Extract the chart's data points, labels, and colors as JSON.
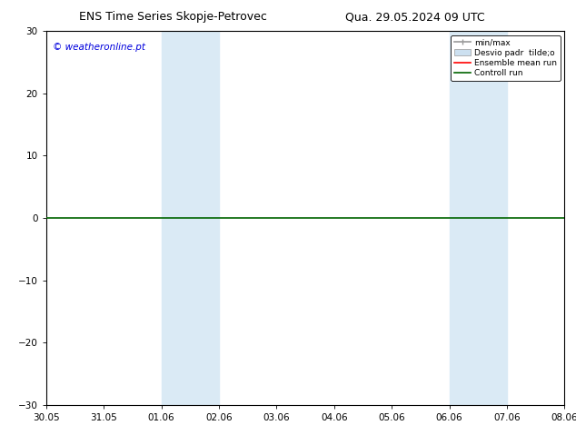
{
  "title_left": "ENS Time Series Skopje-Petrovec",
  "title_right": "Qua. 29.05.2024 09 UTC",
  "xlabel_ticks": [
    "30.05",
    "31.05",
    "01.06",
    "02.06",
    "03.06",
    "04.06",
    "05.06",
    "06.06",
    "07.06",
    "08.06"
  ],
  "ylim": [
    -30,
    30
  ],
  "yticks": [
    -30,
    -20,
    -10,
    0,
    10,
    20,
    30
  ],
  "watermark": "© weatheronline.pt",
  "watermark_color": "#0000dd",
  "legend_entries": [
    "min/max",
    "Desvio padr  tilde;o",
    "Ensemble mean run",
    "Controll run"
  ],
  "legend_colors": [
    "#aaaaaa",
    "#cce0f0",
    "#ff0000",
    "#006400"
  ],
  "shaded_regions": [
    {
      "xstart": 2,
      "xend": 3,
      "color": "#daeaf5"
    },
    {
      "xstart": 7,
      "xend": 8,
      "color": "#daeaf5"
    }
  ],
  "hline_y": 0,
  "hline_color": "#006400",
  "hline_lw": 1.2,
  "bg_color": "#ffffff",
  "plot_bg_color": "#ffffff",
  "title_fontsize": 9,
  "tick_fontsize": 7.5,
  "watermark_fontsize": 7.5
}
